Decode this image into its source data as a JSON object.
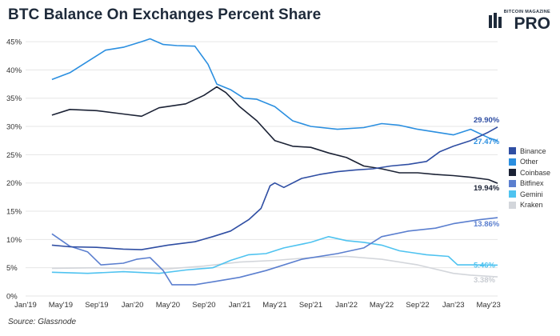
{
  "title": "BTC Balance On Exchanges Percent Share",
  "logo": {
    "top_text": "BITCOIN MAGAZINE",
    "main_text": "PRO"
  },
  "source": "Source: Glassnode",
  "chart_data": {
    "type": "line",
    "title": "BTC Balance On Exchanges Percent Share",
    "xlabel": "",
    "ylabel": "",
    "x_ticks": [
      "Jan'19",
      "May'19",
      "Sep'19",
      "Jan'20",
      "May'20",
      "Sep'20",
      "Jan'21",
      "May'21",
      "Sep'21",
      "Jan'22",
      "May'22",
      "Sep'22",
      "Jan'23",
      "May'23"
    ],
    "y_ticks": [
      "0%",
      "5%",
      "10%",
      "15%",
      "20%",
      "25%",
      "30%",
      "35%",
      "40%",
      "45%"
    ],
    "ylim": [
      0,
      46
    ],
    "grid": true,
    "legend_position": "right",
    "series": [
      {
        "name": "Binance",
        "color": "#2f4ea3",
        "points": [
          [
            "2019-04-01",
            9.0
          ],
          [
            "2019-06-01",
            8.7
          ],
          [
            "2019-09-01",
            8.6
          ],
          [
            "2019-12-01",
            8.3
          ],
          [
            "2020-02-01",
            8.2
          ],
          [
            "2020-05-01",
            9.0
          ],
          [
            "2020-08-01",
            9.6
          ],
          [
            "2020-10-01",
            10.5
          ],
          [
            "2020-12-01",
            11.5
          ],
          [
            "2021-02-01",
            13.5
          ],
          [
            "2021-03-15",
            15.5
          ],
          [
            "2021-04-15",
            19.5
          ],
          [
            "2021-05-01",
            20.0
          ],
          [
            "2021-06-01",
            19.2
          ],
          [
            "2021-08-01",
            20.8
          ],
          [
            "2021-10-01",
            21.5
          ],
          [
            "2021-12-01",
            22.0
          ],
          [
            "2022-02-01",
            22.3
          ],
          [
            "2022-04-01",
            22.5
          ],
          [
            "2022-06-01",
            23.0
          ],
          [
            "2022-08-01",
            23.3
          ],
          [
            "2022-10-01",
            23.8
          ],
          [
            "2022-11-15",
            25.5
          ],
          [
            "2023-01-01",
            26.5
          ],
          [
            "2023-03-01",
            27.5
          ],
          [
            "2023-05-01",
            29.0
          ],
          [
            "2023-06-01",
            29.9
          ]
        ]
      },
      {
        "name": "Other",
        "color": "#2b8fe0",
        "points": [
          [
            "2019-04-01",
            38.3
          ],
          [
            "2019-06-01",
            39.5
          ],
          [
            "2019-08-01",
            41.5
          ],
          [
            "2019-10-01",
            43.5
          ],
          [
            "2019-12-01",
            44.0
          ],
          [
            "2020-02-01",
            45.0
          ],
          [
            "2020-03-01",
            45.5
          ],
          [
            "2020-04-15",
            44.5
          ],
          [
            "2020-06-01",
            44.3
          ],
          [
            "2020-08-01",
            44.2
          ],
          [
            "2020-09-15",
            41.0
          ],
          [
            "2020-10-15",
            37.5
          ],
          [
            "2020-12-01",
            36.5
          ],
          [
            "2021-01-15",
            35.0
          ],
          [
            "2021-03-01",
            34.8
          ],
          [
            "2021-05-01",
            33.5
          ],
          [
            "2021-07-01",
            31.0
          ],
          [
            "2021-09-01",
            30.0
          ],
          [
            "2021-12-01",
            29.5
          ],
          [
            "2022-03-01",
            29.8
          ],
          [
            "2022-05-01",
            30.5
          ],
          [
            "2022-07-01",
            30.2
          ],
          [
            "2022-09-01",
            29.5
          ],
          [
            "2022-11-01",
            29.0
          ],
          [
            "2023-01-01",
            28.5
          ],
          [
            "2023-03-01",
            29.5
          ],
          [
            "2023-05-01",
            28.0
          ],
          [
            "2023-06-01",
            27.47
          ]
        ]
      },
      {
        "name": "Coinbase",
        "color": "#1b2235",
        "points": [
          [
            "2019-04-01",
            32.0
          ],
          [
            "2019-06-01",
            33.0
          ],
          [
            "2019-09-01",
            32.8
          ],
          [
            "2019-12-01",
            32.2
          ],
          [
            "2020-02-01",
            31.8
          ],
          [
            "2020-04-01",
            33.3
          ],
          [
            "2020-07-01",
            34.0
          ],
          [
            "2020-09-01",
            35.5
          ],
          [
            "2020-10-15",
            37.0
          ],
          [
            "2020-11-15",
            36.0
          ],
          [
            "2021-01-01",
            33.5
          ],
          [
            "2021-03-01",
            31.0
          ],
          [
            "2021-05-01",
            27.5
          ],
          [
            "2021-07-01",
            26.5
          ],
          [
            "2021-09-01",
            26.3
          ],
          [
            "2021-11-01",
            25.3
          ],
          [
            "2022-01-01",
            24.5
          ],
          [
            "2022-03-01",
            23.0
          ],
          [
            "2022-05-01",
            22.5
          ],
          [
            "2022-07-01",
            21.8
          ],
          [
            "2022-09-01",
            21.8
          ],
          [
            "2022-11-01",
            21.5
          ],
          [
            "2023-01-01",
            21.3
          ],
          [
            "2023-03-01",
            21.0
          ],
          [
            "2023-05-01",
            20.6
          ],
          [
            "2023-06-01",
            19.94
          ]
        ]
      },
      {
        "name": "Bitfinex",
        "color": "#5b7fcf",
        "points": [
          [
            "2019-04-01",
            11.0
          ],
          [
            "2019-06-01",
            8.8
          ],
          [
            "2019-08-01",
            7.8
          ],
          [
            "2019-09-15",
            5.5
          ],
          [
            "2019-12-01",
            5.8
          ],
          [
            "2020-01-15",
            6.5
          ],
          [
            "2020-03-01",
            6.8
          ],
          [
            "2020-04-15",
            4.5
          ],
          [
            "2020-05-15",
            2.0
          ],
          [
            "2020-08-01",
            2.0
          ],
          [
            "2020-10-01",
            2.5
          ],
          [
            "2021-01-01",
            3.3
          ],
          [
            "2021-04-01",
            4.5
          ],
          [
            "2021-08-01",
            6.5
          ],
          [
            "2021-12-01",
            7.5
          ],
          [
            "2022-03-01",
            8.5
          ],
          [
            "2022-05-01",
            10.5
          ],
          [
            "2022-08-01",
            11.5
          ],
          [
            "2022-11-01",
            12.0
          ],
          [
            "2023-01-01",
            12.8
          ],
          [
            "2023-04-01",
            13.5
          ],
          [
            "2023-06-01",
            13.86
          ]
        ]
      },
      {
        "name": "Gemini",
        "color": "#4fc3f0",
        "points": [
          [
            "2019-04-01",
            4.2
          ],
          [
            "2019-08-01",
            4.0
          ],
          [
            "2019-12-01",
            4.3
          ],
          [
            "2020-04-01",
            4.0
          ],
          [
            "2020-07-01",
            4.6
          ],
          [
            "2020-10-01",
            5.0
          ],
          [
            "2020-12-01",
            6.3
          ],
          [
            "2021-02-01",
            7.3
          ],
          [
            "2021-04-01",
            7.5
          ],
          [
            "2021-06-01",
            8.5
          ],
          [
            "2021-09-01",
            9.5
          ],
          [
            "2021-11-01",
            10.5
          ],
          [
            "2022-01-01",
            9.8
          ],
          [
            "2022-03-01",
            9.5
          ],
          [
            "2022-05-01",
            9.0
          ],
          [
            "2022-07-01",
            8.0
          ],
          [
            "2022-10-01",
            7.3
          ],
          [
            "2022-12-15",
            7.0
          ],
          [
            "2023-01-15",
            5.5
          ],
          [
            "2023-03-01",
            5.5
          ],
          [
            "2023-06-01",
            5.46
          ]
        ]
      },
      {
        "name": "Kraken",
        "color": "#d3d6db",
        "points": [
          [
            "2019-04-01",
            4.9
          ],
          [
            "2019-09-01",
            5.0
          ],
          [
            "2020-01-01",
            4.8
          ],
          [
            "2020-05-01",
            4.8
          ],
          [
            "2020-09-01",
            5.3
          ],
          [
            "2021-01-01",
            6.0
          ],
          [
            "2021-05-01",
            6.3
          ],
          [
            "2021-09-01",
            6.8
          ],
          [
            "2022-01-01",
            7.0
          ],
          [
            "2022-05-01",
            6.5
          ],
          [
            "2022-09-01",
            5.5
          ],
          [
            "2023-01-01",
            4.0
          ],
          [
            "2023-03-01",
            3.7
          ],
          [
            "2023-06-01",
            3.38
          ]
        ]
      }
    ],
    "end_labels": [
      {
        "series": "Binance",
        "text": "29.90%",
        "color": "#2f4ea3"
      },
      {
        "series": "Other",
        "text": "27.47%",
        "color": "#2b8fe0"
      },
      {
        "series": "Coinbase",
        "text": "19.94%",
        "color": "#1b2235"
      },
      {
        "series": "Bitfinex",
        "text": "13.86%",
        "color": "#5b7fcf"
      },
      {
        "series": "Gemini",
        "text": "5.46%",
        "color": "#4fc3f0"
      },
      {
        "series": "Kraken",
        "text": "3.38%",
        "color": "#c8ccd2"
      }
    ]
  },
  "legend": {
    "items": [
      {
        "label": "Binance",
        "color": "#2f4ea3"
      },
      {
        "label": "Other",
        "color": "#2b8fe0"
      },
      {
        "label": "Coinbase",
        "color": "#1b2235"
      },
      {
        "label": "Bitfinex",
        "color": "#5b7fcf"
      },
      {
        "label": "Gemini",
        "color": "#4fc3f0"
      },
      {
        "label": "Kraken",
        "color": "#d3d6db"
      }
    ]
  }
}
